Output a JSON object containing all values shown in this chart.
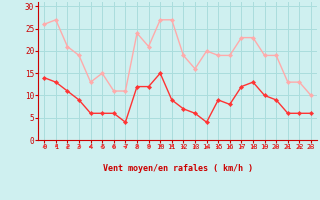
{
  "hours": [
    0,
    1,
    2,
    3,
    4,
    5,
    6,
    7,
    8,
    9,
    10,
    11,
    12,
    13,
    14,
    15,
    16,
    17,
    18,
    19,
    20,
    21,
    22,
    23
  ],
  "wind_avg": [
    14,
    13,
    11,
    9,
    6,
    6,
    6,
    4,
    12,
    12,
    15,
    9,
    7,
    6,
    4,
    9,
    8,
    12,
    13,
    10,
    9,
    6,
    6,
    6
  ],
  "wind_gust": [
    26,
    27,
    21,
    19,
    13,
    15,
    11,
    11,
    24,
    21,
    27,
    27,
    19,
    16,
    20,
    19,
    19,
    23,
    23,
    19,
    19,
    13,
    13,
    10
  ],
  "wind_dirs_angle": [
    225,
    202,
    225,
    225,
    247,
    247,
    247,
    270,
    225,
    225,
    202,
    202,
    270,
    247,
    315,
    270,
    270,
    90,
    90,
    90,
    90,
    90,
    90,
    90
  ],
  "bg_color": "#cff0f0",
  "grid_color": "#aadddd",
  "avg_color": "#ff3333",
  "gust_color": "#ffaaaa",
  "axis_label_color": "#cc0000",
  "tick_color": "#cc0000",
  "xlabel": "Vent moyen/en rafales ( km/h )",
  "ylim": [
    0,
    31
  ],
  "yticks": [
    0,
    5,
    10,
    15,
    20,
    25,
    30
  ],
  "xlim": [
    -0.5,
    23.5
  ]
}
